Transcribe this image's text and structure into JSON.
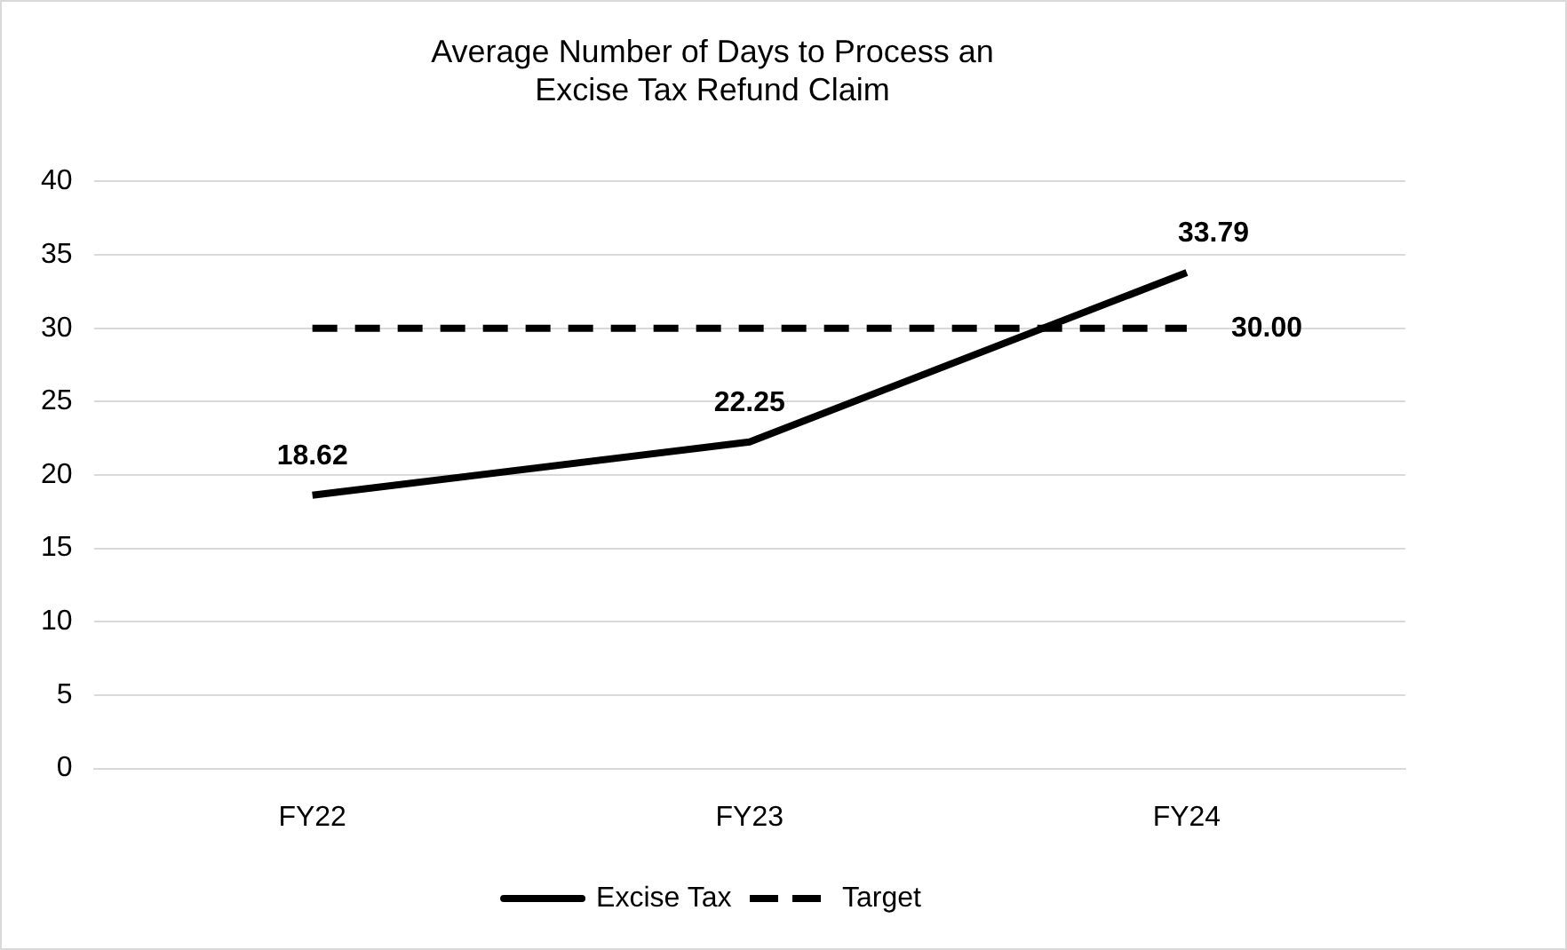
{
  "chart_data": {
    "type": "line",
    "title": "Average Number of Days to Process an\nExcise Tax Refund Claim",
    "categories": [
      "FY22",
      "FY23",
      "FY24"
    ],
    "series": [
      {
        "name": "Excise Tax",
        "color": "#000000",
        "line_style": "solid",
        "values": [
          18.62,
          22.25,
          33.79
        ],
        "value_labels": [
          "18.62",
          "22.25",
          "33.79"
        ]
      },
      {
        "name": "Target",
        "color": "#000000",
        "line_style": "dashed",
        "values": [
          30,
          30,
          30
        ],
        "value_labels": [
          null,
          null,
          "30.00"
        ]
      }
    ],
    "ylim": [
      0,
      40
    ],
    "yticks": [
      0,
      5,
      10,
      15,
      20,
      25,
      30,
      35,
      40
    ],
    "grid": "y",
    "legend": "bottom",
    "marker": "none"
  }
}
